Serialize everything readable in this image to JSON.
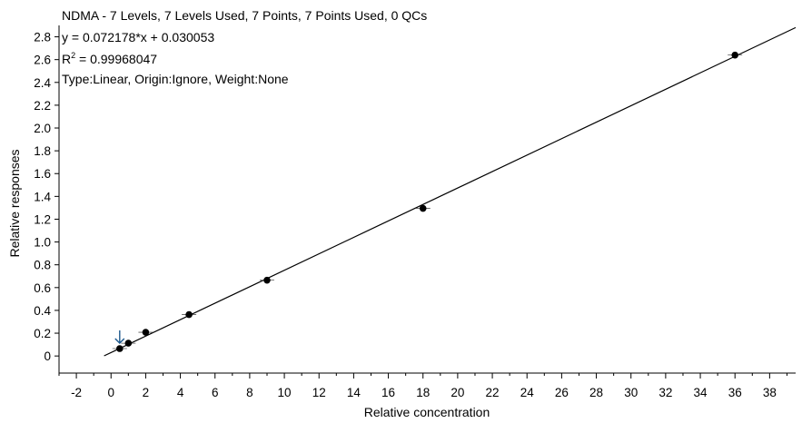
{
  "chart_data": {
    "type": "scatter",
    "title": "NDMA - 7 Levels, 7 Levels Used, 7 Points, 7 Points Used, 0 QCs",
    "equation": "y = 0.072178*x  + 0.030053",
    "r_squared_label": "R",
    "r_squared_sup": "2",
    "r_squared_value": " = 0.99968047",
    "fit_info": "Type:Linear, Origin:Ignore, Weight:None",
    "xlabel": "Relative concentration",
    "ylabel": "Relative responses",
    "xlim": [
      -3,
      39.5
    ],
    "ylim": [
      -0.15,
      2.9
    ],
    "x_ticks": [
      -2,
      0,
      2,
      4,
      6,
      8,
      10,
      12,
      14,
      16,
      18,
      20,
      22,
      24,
      26,
      28,
      30,
      32,
      34,
      36,
      38
    ],
    "y_ticks": [
      0,
      0.2,
      0.4,
      0.6,
      0.8,
      1.0,
      1.2,
      1.4,
      1.6,
      1.8,
      2.0,
      2.2,
      2.4,
      2.6,
      2.8
    ],
    "x_tick_labels": [
      "-2",
      "0",
      "2",
      "4",
      "6",
      "8",
      "10",
      "12",
      "14",
      "16",
      "18",
      "20",
      "22",
      "24",
      "26",
      "28",
      "30",
      "32",
      "34",
      "36",
      "38"
    ],
    "y_tick_labels": [
      "0",
      "0.2",
      "0.4",
      "0.6",
      "0.8",
      "1.0",
      "1.2",
      "1.4",
      "1.6",
      "1.8",
      "2.0",
      "2.2",
      "2.4",
      "2.6",
      "2.8"
    ],
    "series": [
      {
        "type": "scatter",
        "x": [
          0.5,
          1.0,
          2.0,
          4.5,
          9.0,
          18.0,
          36.0
        ],
        "y": [
          0.065,
          0.112,
          0.208,
          0.363,
          0.665,
          1.295,
          2.64
        ]
      }
    ],
    "fit_line": {
      "slope": 0.072178,
      "intercept": 0.030053,
      "x_range": [
        -0.4,
        39.5
      ]
    },
    "marker_arrow_x": 0.5,
    "colors": {
      "line": "#000000",
      "point": "#000000",
      "arrow": "#1f5b8f"
    },
    "grid": false,
    "legend": "none"
  }
}
